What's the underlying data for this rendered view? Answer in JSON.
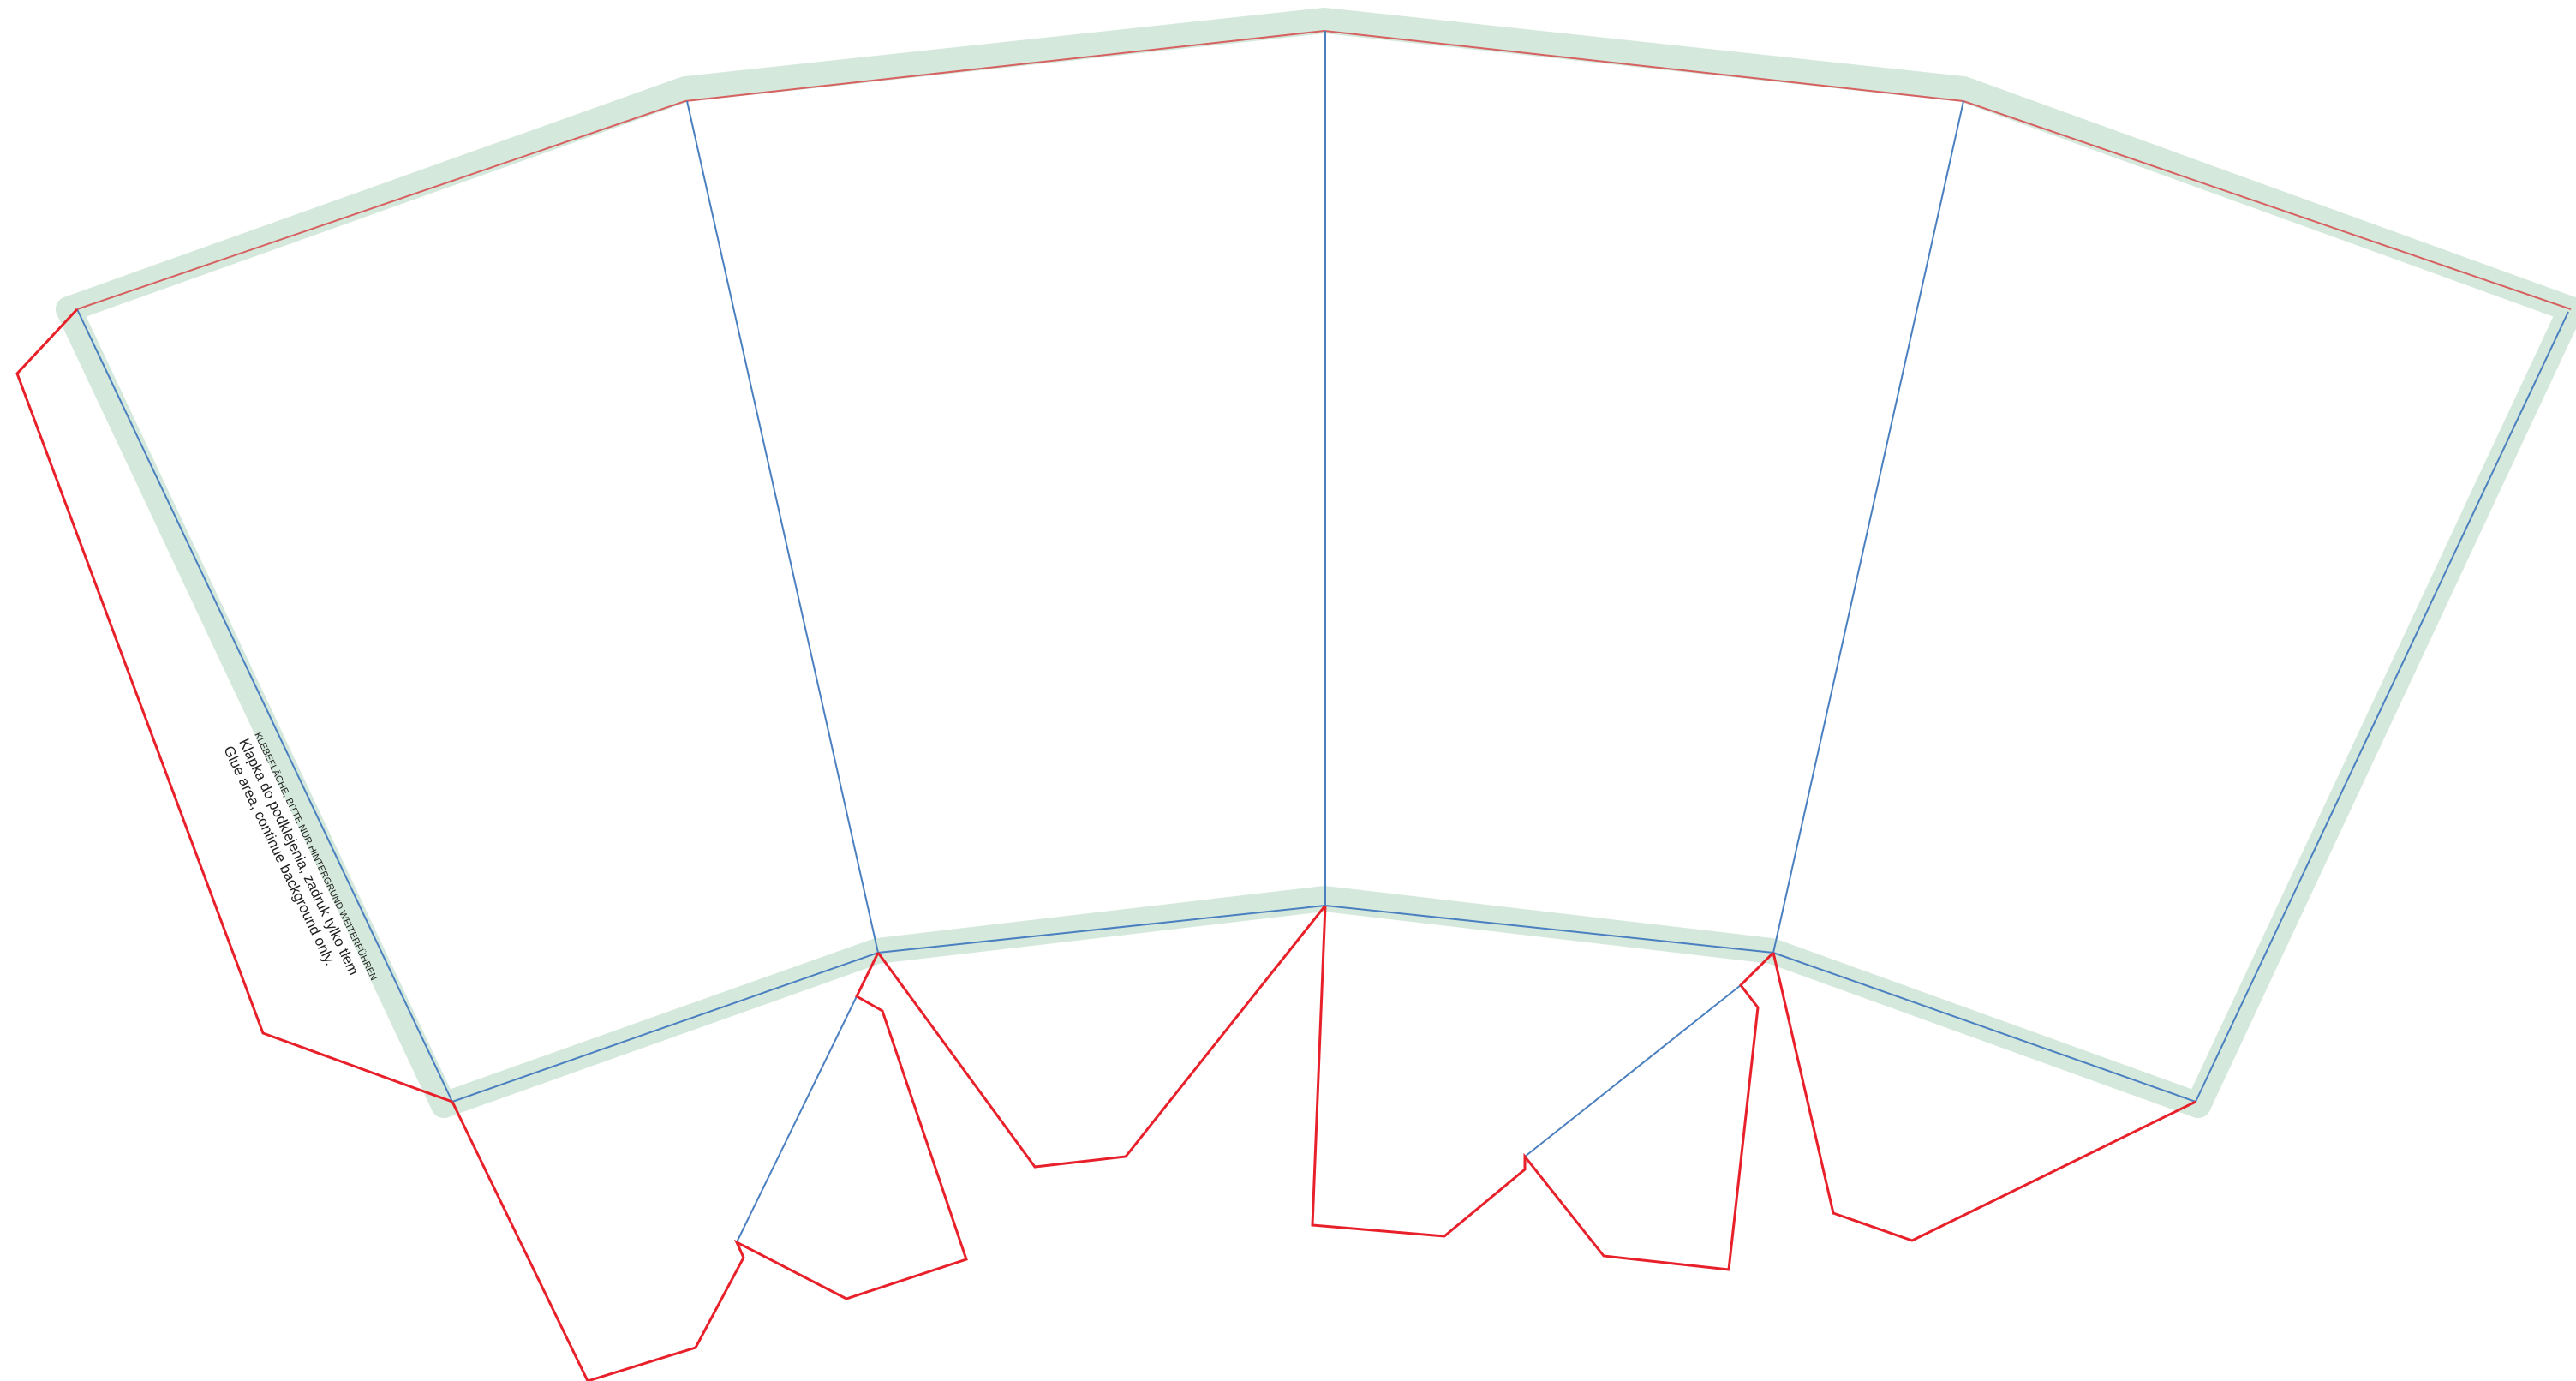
{
  "glue_flap": {
    "line_de": "KLEBEFLÄCHE, BITTE NUR HINTERGRUND WEITERFÜHREN",
    "line_pl": "Klapka do podklejenia, zadruk tylko tłem",
    "line_en": "Glue area, continue background only."
  },
  "colors": {
    "bleed": "#d4e8dc",
    "cut": "#e8202a",
    "fold": "#4a7fc0",
    "trim": "#d76060",
    "text": "#222222",
    "background": "#ffffff"
  }
}
